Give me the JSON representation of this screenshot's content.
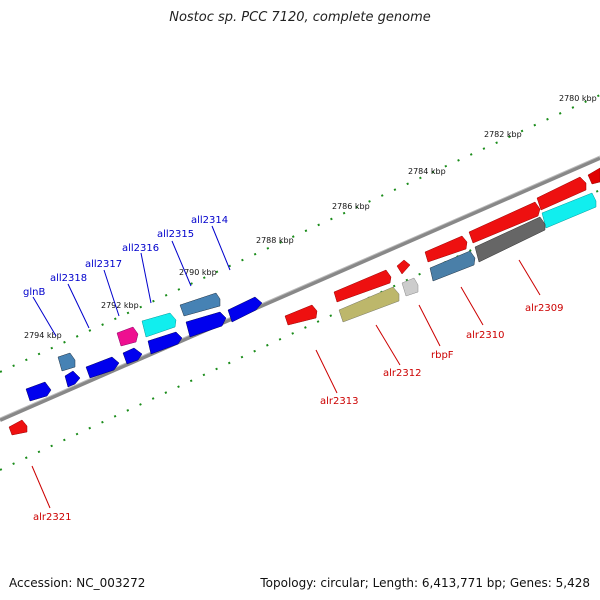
{
  "title": "Nostoc sp. PCC 7120, complete genome",
  "footer": {
    "accession": "Accession: NC_003272",
    "stats": "Topology: circular; Length: 6,413,771 bp; Genes: 5,428"
  },
  "colors": {
    "forward_label": "#cc0000",
    "reverse_label": "#0000cc",
    "axis": "#777777",
    "tick": "#1a8c1a"
  },
  "ticks": [
    "2780 kbp",
    "2782 kbp",
    "2784 kbp",
    "2786 kbp",
    "2788 kbp",
    "2790 kbp",
    "2792 kbp",
    "2794 kbp"
  ],
  "genes": [
    {
      "label": "alr2309",
      "strand": "forward"
    },
    {
      "label": "alr2310",
      "strand": "forward"
    },
    {
      "label": "rbpF",
      "strand": "forward"
    },
    {
      "label": "alr2312",
      "strand": "forward"
    },
    {
      "label": "alr2313",
      "strand": "forward"
    },
    {
      "label": "alr2321",
      "strand": "forward"
    },
    {
      "label": "all2314",
      "strand": "reverse"
    },
    {
      "label": "all2315",
      "strand": "reverse"
    },
    {
      "label": "all2316",
      "strand": "reverse"
    },
    {
      "label": "all2317",
      "strand": "reverse"
    },
    {
      "label": "all2318",
      "strand": "reverse"
    },
    {
      "label": "glnB",
      "strand": "reverse"
    }
  ]
}
